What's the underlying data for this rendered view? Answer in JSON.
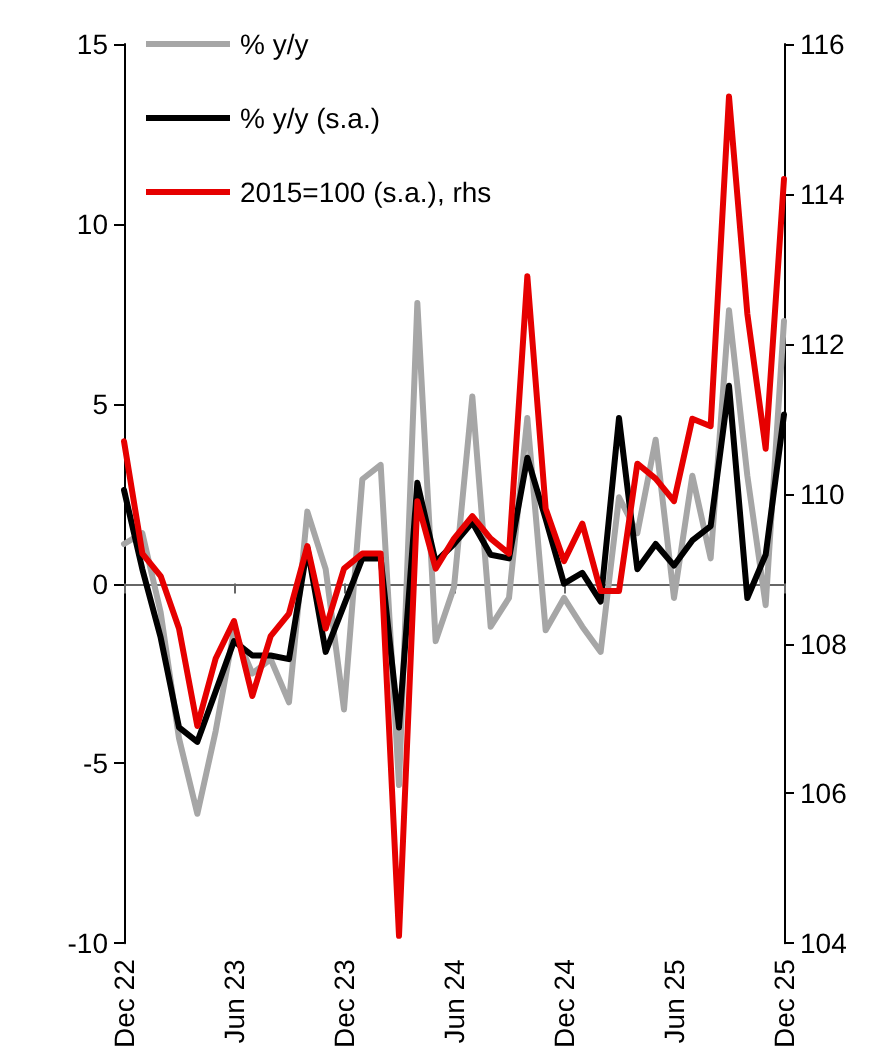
{
  "chart_data": {
    "type": "line",
    "categories": [
      "Dec 22",
      null,
      null,
      null,
      null,
      null,
      "Jun 23",
      null,
      null,
      null,
      null,
      null,
      "Dec 23",
      null,
      null,
      null,
      null,
      null,
      "Jun 24",
      null,
      null,
      null,
      null,
      null,
      "Dec 24",
      null,
      null,
      null,
      null,
      null,
      "Jun 25",
      null,
      null,
      null,
      null,
      null,
      "Dec 25"
    ],
    "series": [
      {
        "name": "% y/y",
        "color": "#a6a6a6",
        "values": [
          1.1,
          1.4,
          -0.8,
          -4.3,
          -6.4,
          -4.1,
          -1.3,
          -2.5,
          -2.1,
          -3.3,
          2.0,
          0.4,
          -3.5,
          2.9,
          3.3,
          -5.6,
          7.8,
          -1.6,
          -0.1,
          5.2,
          -1.2,
          -0.4,
          4.6,
          -1.3,
          -0.4,
          -1.2,
          -1.9,
          2.4,
          1.4,
          4.0,
          -0.4,
          3.0,
          0.7,
          7.6,
          3.0,
          -0.6,
          7.3
        ]
      },
      {
        "name": "% y/y (s.a.)",
        "color": "#000000",
        "values": [
          2.6,
          0.4,
          -1.5,
          -4.0,
          -4.4,
          -3.0,
          -1.6,
          -2.0,
          -2.0,
          -2.1,
          1.0,
          -1.9,
          -0.6,
          0.7,
          0.7,
          -4.0,
          2.8,
          0.6,
          1.1,
          1.7,
          0.8,
          0.7,
          3.5,
          1.8,
          0.0,
          0.3,
          -0.5,
          4.6,
          0.4,
          1.1,
          0.5,
          1.2,
          1.6,
          5.5,
          -0.4,
          0.8,
          4.7
        ]
      },
      {
        "name": "2015=100 (s.a.), rhs",
        "color": "#e60000",
        "axis": "y2",
        "values": [
          110.7,
          109.2,
          108.9,
          108.2,
          106.9,
          107.8,
          108.3,
          107.3,
          108.1,
          108.4,
          109.3,
          108.2,
          109.0,
          109.2,
          109.2,
          104.1,
          109.9,
          109.0,
          109.4,
          109.7,
          109.4,
          109.2,
          112.9,
          109.8,
          109.1,
          109.6,
          108.7,
          108.7,
          110.4,
          110.2,
          109.9,
          111.0,
          110.9,
          115.3,
          112.4,
          110.6,
          114.2
        ]
      }
    ],
    "ylim": [
      -10,
      15
    ],
    "yticks": [
      -10,
      -5,
      0,
      5,
      10,
      15
    ],
    "y2lim": [
      104,
      116
    ],
    "y2ticks": [
      104,
      106,
      108,
      110,
      112,
      114,
      116
    ],
    "legend": "top left",
    "marker": "none",
    "line_style": "solid"
  }
}
